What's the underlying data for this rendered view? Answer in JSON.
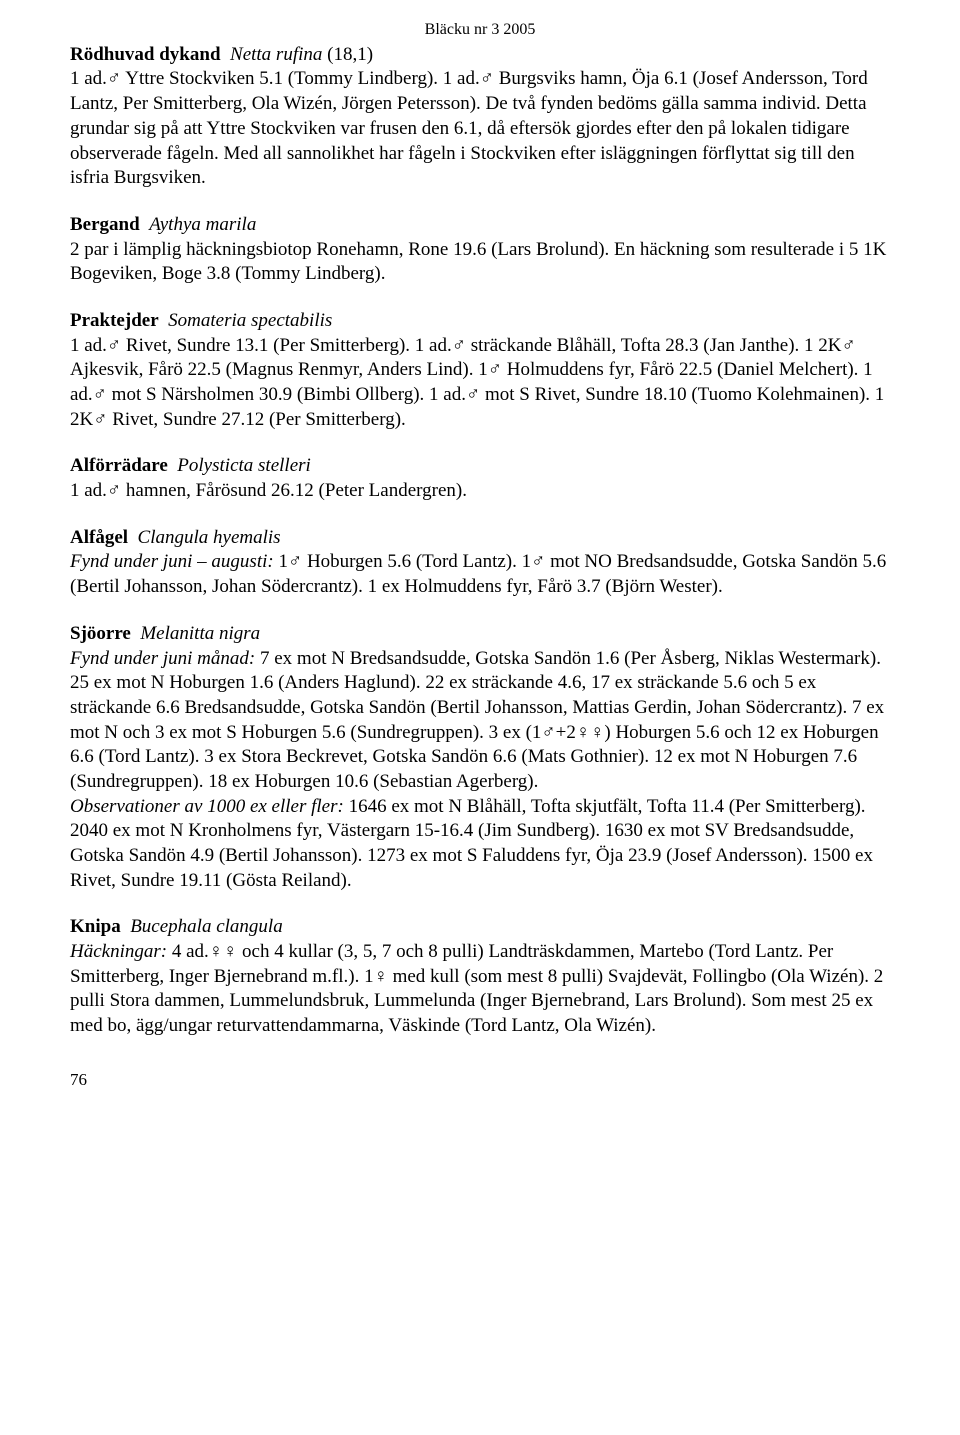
{
  "header": {
    "issue": "Bläcku nr 3 2005"
  },
  "entries": [
    {
      "common": "Rödhuvad dykand",
      "scientific": "Netta rufina",
      "count": " (18,1)",
      "body": "1 ad.♂ Yttre Stockviken 5.1 (Tommy Lindberg). 1 ad.♂ Burgsviks hamn, Öja 6.1 (Josef Andersson, Tord Lantz, Per Smitterberg, Ola Wizén, Jörgen Petersson). De två fynden bedöms gälla samma individ. Detta grundar sig på att Yttre Stockviken var frusen den 6.1, då eftersök gjordes efter den på lokalen tidigare observerade fågeln. Med all sannolikhet har fågeln i Stockviken efter isläggningen förflyttat sig till den isfria Burgsviken."
    },
    {
      "common": "Bergand",
      "scientific": "Aythya marila",
      "count": "",
      "body": "2 par i lämplig häckningsbiotop Ronehamn, Rone 19.6 (Lars Brolund). En häckning som resulterade i 5 1K Bogeviken, Boge 3.8 (Tommy Lindberg)."
    },
    {
      "common": "Praktejder",
      "scientific": "Somateria spectabilis",
      "count": "",
      "body": "1 ad.♂ Rivet, Sundre 13.1 (Per Smitterberg). 1 ad.♂ sträckande Blåhäll, Tofta 28.3 (Jan Janthe). 1 2K♂ Ajkesvik, Fårö 22.5 (Magnus Renmyr, Anders Lind). 1♂ Holmuddens fyr, Fårö 22.5 (Daniel Melchert). 1 ad.♂ mot S Närsholmen 30.9 (Bimbi Ollberg). 1 ad.♂ mot S Rivet, Sundre 18.10 (Tuomo Kolehmainen). 1 2K♂ Rivet, Sundre 27.12 (Per Smitterberg)."
    },
    {
      "common": "Alförrädare",
      "scientific": "Polysticta stelleri",
      "count": "",
      "body": "1 ad.♂ hamnen, Fårösund 26.12 (Peter Landergren)."
    },
    {
      "common": "Alfågel",
      "scientific": "Clangula hyemalis",
      "count": "",
      "lead": "Fynd under juni – augusti: ",
      "body": "1♂ Hoburgen 5.6 (Tord Lantz). 1♂ mot NO Bredsandsudde, Gotska Sandön 5.6 (Bertil Johansson, Johan Södercrantz). 1 ex Holmuddens fyr, Fårö 3.7 (Björn Wester)."
    },
    {
      "common": "Sjöorre",
      "scientific": "Melanitta nigra",
      "count": "",
      "lead": "Fynd under juni månad: ",
      "body": "7 ex mot N Bredsandsudde, Gotska Sandön 1.6 (Per Åsberg, Niklas Westermark). 25 ex mot N Hoburgen 1.6 (Anders Haglund). 22 ex sträckande 4.6, 17 ex sträckande 5.6 och 5 ex sträckande 6.6 Bredsandsudde, Gotska Sandön (Bertil Johansson, Mattias Gerdin, Johan Södercrantz). 7 ex mot N och 3 ex mot S Hoburgen 5.6 (Sundregruppen). 3 ex (1♂+2♀♀) Hoburgen 5.6 och 12 ex Hoburgen 6.6 (Tord Lantz). 3 ex Stora Beckrevet, Gotska Sandön 6.6 (Mats Gothnier). 12 ex mot N Hoburgen 7.6 (Sundregruppen). 18 ex Hoburgen 10.6 (Sebastian Agerberg).",
      "lead2": "Observationer av 1000 ex eller fler: ",
      "body2": "1646 ex mot N Blåhäll, Tofta skjutfält, Tofta 11.4 (Per Smitterberg). 2040 ex mot N Kronholmens fyr, Västergarn 15-16.4 (Jim Sundberg). 1630 ex mot SV Bredsandsudde, Gotska Sandön 4.9 (Bertil Johansson). 1273 ex mot S Faluddens fyr, Öja 23.9 (Josef Andersson). 1500 ex Rivet, Sundre 19.11 (Gösta Reiland)."
    },
    {
      "common": "Knipa",
      "scientific": "Bucephala clangula",
      "count": "",
      "lead": "Häckningar: ",
      "body": "4 ad.♀♀ och 4 kullar (3, 5, 7 och 8 pulli) Landträskdammen, Martebo (Tord Lantz. Per Smitterberg, Inger Bjernebrand m.fl.). 1♀ med kull (som mest 8 pulli) Svajdevät, Follingbo (Ola Wizén). 2 pulli Stora dammen, Lummelundsbruk, Lummelunda (Inger Bjernebrand, Lars Brolund). Som mest 25 ex med bo, ägg/ungar returvattendammarna, Väskinde (Tord Lantz, Ola Wizén)."
    }
  ],
  "page_number": "76"
}
